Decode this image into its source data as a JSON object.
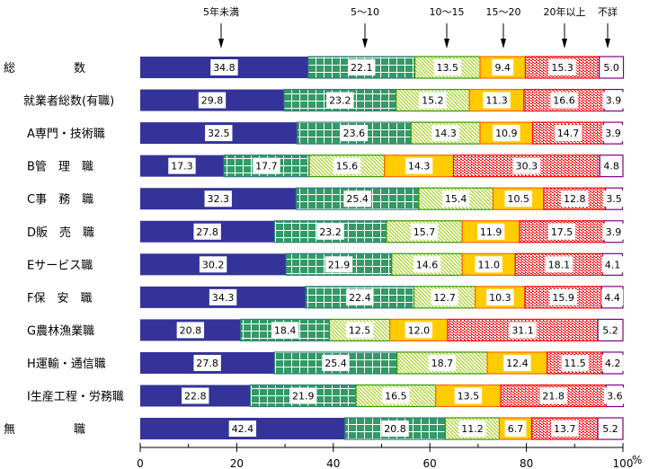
{
  "chart_data": {
    "type": "bar",
    "orientation": "horizontal",
    "stacked": true,
    "percent": true,
    "title": "",
    "xlabel": "",
    "ylabel": "",
    "xlim": [
      0,
      100
    ],
    "x_ticks": [
      "0",
      "20",
      "40",
      "60",
      "80",
      "100"
    ],
    "x_unit": "%",
    "grid": false,
    "legend_placement": "top (arrow-annotated labels)",
    "categories": [
      "総　　　　　数",
      "就業者総数(有職)",
      "A専門・技術職",
      "B管　理　職",
      "C事　務　職",
      "D販　売　職",
      "Eサービス職",
      "F保　安　職",
      "G農林漁業職",
      "H運輸・通信職",
      "I生産工程・労務職",
      "無　　　　　職"
    ],
    "series": [
      {
        "name": "5年未満",
        "color": "#333399",
        "pattern": "solid",
        "values": [
          34.8,
          29.8,
          32.5,
          17.3,
          32.3,
          27.8,
          30.2,
          34.3,
          20.8,
          27.8,
          22.8,
          42.4
        ]
      },
      {
        "name": "5～10",
        "color": "#339966",
        "pattern": "grid",
        "values": [
          22.1,
          23.2,
          23.6,
          17.7,
          25.4,
          23.2,
          21.9,
          22.4,
          18.4,
          25.4,
          21.9,
          20.8
        ]
      },
      {
        "name": "10～15",
        "color": "#99cc00",
        "pattern": "diagonal",
        "values": [
          13.5,
          15.2,
          14.3,
          15.6,
          15.4,
          15.7,
          14.6,
          12.7,
          12.5,
          18.7,
          16.5,
          11.2
        ]
      },
      {
        "name": "15～20",
        "color": "#ffcc00",
        "pattern": "solid",
        "values": [
          9.4,
          11.3,
          10.9,
          14.3,
          10.5,
          11.9,
          11.0,
          10.3,
          12.0,
          12.4,
          13.5,
          6.7
        ]
      },
      {
        "name": "20年以上",
        "color": "#ff0000",
        "pattern": "dots",
        "values": [
          15.3,
          16.6,
          14.7,
          30.3,
          12.8,
          17.5,
          18.1,
          15.9,
          31.1,
          11.5,
          21.8,
          13.7
        ]
      },
      {
        "name": "不詳",
        "color": "#800080",
        "pattern": "outline",
        "values": [
          5.0,
          3.9,
          3.9,
          4.8,
          3.5,
          3.9,
          4.1,
          4.4,
          5.2,
          4.2,
          3.6,
          5.2
        ]
      }
    ]
  }
}
